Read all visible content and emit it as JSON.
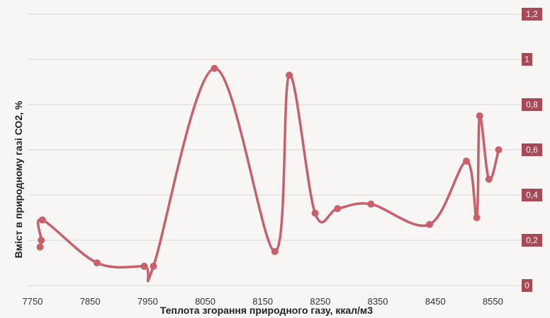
{
  "chart_data": {
    "type": "line",
    "title": "",
    "xlabel": "Теплота згорання природного газу, ккал/м3",
    "ylabel": "Вміст в природному газі СО2, %",
    "xlim": [
      7750,
      8600
    ],
    "ylim": [
      0,
      1.2
    ],
    "x_ticks": [
      "7750",
      "7850",
      "7950",
      "8050",
      "8150",
      "8250",
      "8350",
      "8450",
      "8550"
    ],
    "y_ticks": [
      "0",
      "0,2",
      "0,4",
      "0,6",
      "0,8",
      "1",
      "1,2"
    ],
    "grid": "horizontal",
    "y_axis_position": "right",
    "series": [
      {
        "color": "#c95f6a",
        "x": [
          7763,
          7765,
          7767,
          7862,
          7944,
          7960,
          8066,
          8171,
          8196,
          8241,
          8280,
          8338,
          8440,
          8504,
          8522,
          8527,
          8543,
          8560
        ],
        "y": [
          0.17,
          0.2,
          0.29,
          0.1,
          0.085,
          0.085,
          0.96,
          0.15,
          0.93,
          0.32,
          0.34,
          0.36,
          0.27,
          0.55,
          0.3,
          0.75,
          0.47,
          0.6
        ]
      }
    ]
  }
}
